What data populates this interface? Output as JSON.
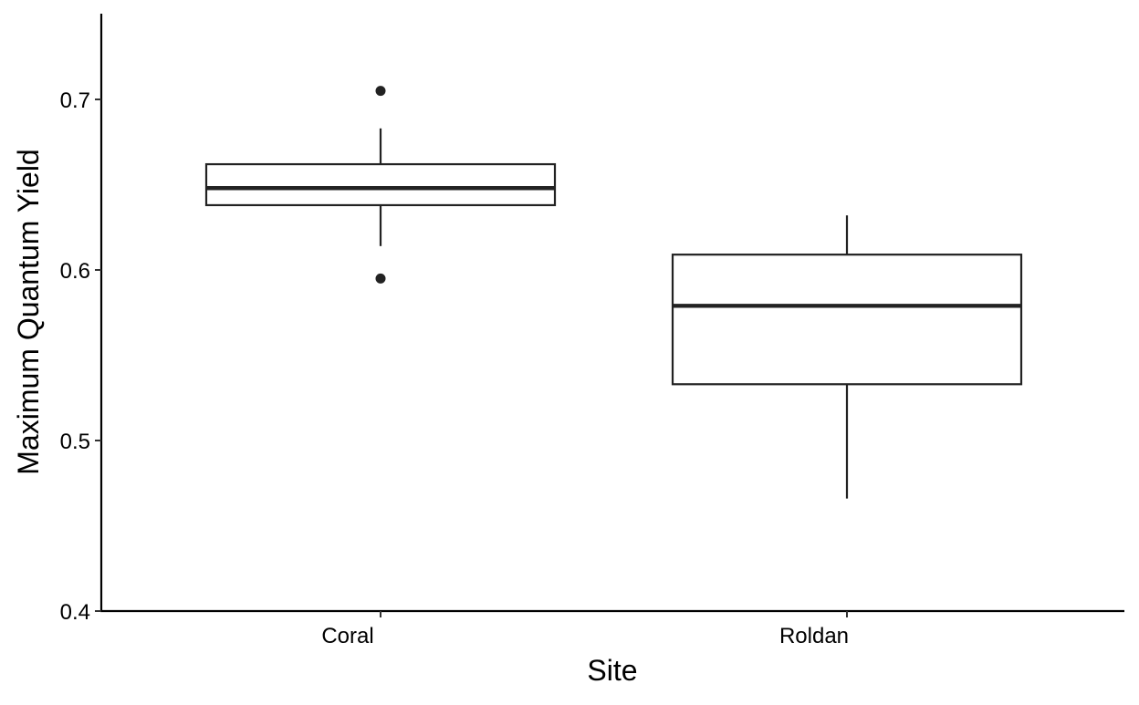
{
  "chart_data": {
    "type": "box",
    "title": "",
    "xlabel": "Site",
    "ylabel": "Maximum Quantum Yield",
    "categories": [
      "Coral",
      "Roldan"
    ],
    "ylim": [
      0.4,
      0.75
    ],
    "y_ticks": [
      0.4,
      0.5,
      0.6,
      0.7
    ],
    "y_tick_labels": [
      "0.4",
      "0.5",
      "0.6",
      "0.7"
    ],
    "grid": false,
    "boxes": [
      {
        "category": "Coral",
        "whisker_low": 0.614,
        "q1": 0.638,
        "median": 0.648,
        "q3": 0.662,
        "whisker_high": 0.683,
        "outliers": [
          0.595,
          0.705
        ]
      },
      {
        "category": "Roldan",
        "whisker_low": 0.466,
        "q1": 0.533,
        "median": 0.579,
        "q3": 0.609,
        "whisker_high": 0.632,
        "outliers": []
      }
    ]
  }
}
